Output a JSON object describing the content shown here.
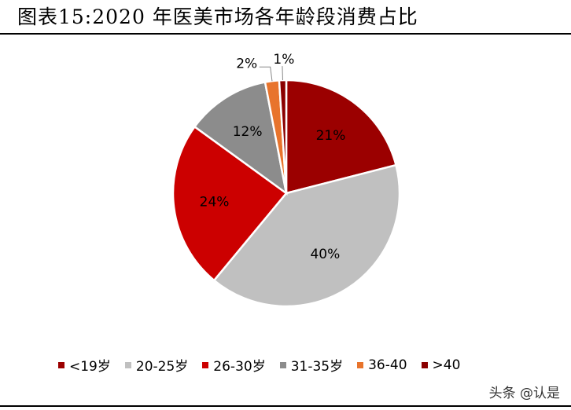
{
  "title": "图表15:2020 年医美市场各年龄段消费占比",
  "watermark": "头条 @认是",
  "chart_data": {
    "type": "pie",
    "title": "",
    "slices": [
      {
        "label": "<19岁",
        "value": 21,
        "display": "21%",
        "color": "#9b0000"
      },
      {
        "label": "20-25岁",
        "value": 40,
        "display": "40%",
        "color": "#c0c0c0"
      },
      {
        "label": "26-30岁",
        "value": 24,
        "display": "24%",
        "color": "#cc0000"
      },
      {
        "label": "31-35岁",
        "value": 12,
        "display": "12%",
        "color": "#8c8c8c"
      },
      {
        "label": "36-40",
        "value": 2,
        "display": "2%",
        "color": "#e8742c"
      },
      {
        "label": ">40",
        "value": 1,
        "display": "1%",
        "color": "#8b0000"
      }
    ],
    "legend_position": "bottom"
  }
}
